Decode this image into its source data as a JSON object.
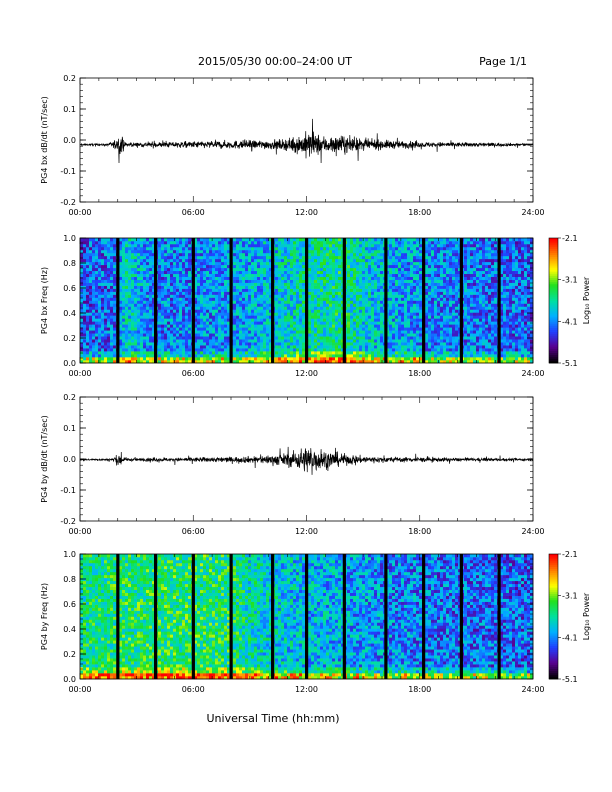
{
  "header": {
    "title": "2015/05/30  00:00–24:00 UT",
    "page": "Page 1/1"
  },
  "footer": {
    "xlabel": "Universal Time (hh:mm)"
  },
  "colors": {
    "trace": "#000000",
    "colormap": [
      "#000000",
      "#5a0090",
      "#2040ff",
      "#00b0ff",
      "#00e0a0",
      "#20e020",
      "#ffff00",
      "#ff8000",
      "#ff0000"
    ]
  },
  "chart_data": [
    {
      "type": "line",
      "ylabel": "PG4 bx dB/dt (nT/sec)",
      "xlim": [
        0,
        24
      ],
      "ylim": [
        -0.2,
        0.2
      ],
      "xticks": [
        "00:00",
        "06:00",
        "12:00",
        "18:00",
        "24:00"
      ],
      "yticks": [
        "-0.2",
        "-0.1",
        "0.0",
        "0.1",
        "0.2"
      ],
      "series": [
        {
          "baseline": -0.015,
          "envelope_x": [
            0,
            1.5,
            2.2,
            2.4,
            3,
            5,
            6,
            8,
            10,
            11,
            11.7,
            12.2,
            12.5,
            13,
            13.5,
            14,
            15,
            16,
            17,
            18,
            20,
            22,
            23,
            24
          ],
          "envelope_amp": [
            0.005,
            0.006,
            0.05,
            0.01,
            0.012,
            0.015,
            0.018,
            0.022,
            0.025,
            0.03,
            0.055,
            0.075,
            0.06,
            0.045,
            0.05,
            0.045,
            0.03,
            0.025,
            0.02,
            0.015,
            0.012,
            0.01,
            0.008,
            0.006
          ]
        }
      ]
    },
    {
      "type": "heatmap",
      "ylabel": "PG4 bx Freq (Hz)",
      "xlim": [
        0,
        24
      ],
      "ylim": [
        0,
        1.0
      ],
      "xticks": [
        "00:00",
        "06:00",
        "12:00",
        "18:00",
        "24:00"
      ],
      "yticks": [
        "0.0",
        "0.2",
        "0.4",
        "0.6",
        "0.8",
        "1.0"
      ],
      "colorbar": {
        "label": "Log₁₀ Power",
        "min": -5.1,
        "max": -2.1,
        "ticks": [
          "-2.1",
          "-3.1",
          "-4.1",
          "-5.1"
        ]
      },
      "gap_hours": [
        2.0,
        4.0,
        6.0,
        8.0,
        10.2,
        12.0,
        14.0,
        16.2,
        18.2,
        20.2,
        22.2
      ],
      "intensity_x": [
        0,
        2,
        2.4,
        4,
        6,
        8,
        10,
        11,
        12,
        13,
        14,
        15,
        16,
        18,
        20,
        22,
        24
      ],
      "intensity": [
        0.28,
        0.3,
        0.45,
        0.32,
        0.33,
        0.36,
        0.4,
        0.45,
        0.48,
        0.5,
        0.52,
        0.45,
        0.4,
        0.35,
        0.32,
        0.3,
        0.28
      ]
    },
    {
      "type": "line",
      "ylabel": "PG4 by dB/dt (nT/sec)",
      "xlim": [
        0,
        24
      ],
      "ylim": [
        -0.2,
        0.2
      ],
      "xticks": [
        "00:00",
        "06:00",
        "12:00",
        "18:00",
        "24:00"
      ],
      "yticks": [
        "-0.2",
        "-0.1",
        "0.0",
        "0.1",
        "0.2"
      ],
      "series": [
        {
          "baseline": -0.002,
          "envelope_x": [
            0,
            1.5,
            2.2,
            2.4,
            3,
            5,
            6,
            8,
            9,
            10,
            11,
            11.7,
            12.2,
            12.5,
            13,
            13.5,
            14,
            15,
            16,
            18,
            20,
            22,
            24
          ],
          "envelope_amp": [
            0.004,
            0.005,
            0.035,
            0.008,
            0.008,
            0.01,
            0.012,
            0.015,
            0.018,
            0.025,
            0.035,
            0.06,
            0.08,
            0.065,
            0.05,
            0.04,
            0.03,
            0.02,
            0.015,
            0.012,
            0.01,
            0.008,
            0.006
          ]
        }
      ]
    },
    {
      "type": "heatmap",
      "ylabel": "PG4 by Freq (Hz)",
      "xlim": [
        0,
        24
      ],
      "ylim": [
        0,
        1.0
      ],
      "xticks": [
        "00:00",
        "06:00",
        "12:00",
        "18:00",
        "24:00"
      ],
      "yticks": [
        "0.0",
        "0.2",
        "0.4",
        "0.6",
        "0.8",
        "1.0"
      ],
      "colorbar": {
        "label": "Log₁₀ Power",
        "min": -5.1,
        "max": -2.1,
        "ticks": [
          "-2.1",
          "-3.1",
          "-4.1",
          "-5.1"
        ]
      },
      "gap_hours": [
        2.0,
        4.0,
        6.0,
        8.0,
        10.2,
        12.0,
        14.0,
        16.2,
        18.2,
        20.2,
        22.2
      ],
      "intensity_x": [
        0,
        2,
        4,
        6,
        8,
        9,
        10,
        12,
        14,
        16,
        18,
        20,
        22,
        24
      ],
      "intensity": [
        0.52,
        0.55,
        0.56,
        0.56,
        0.55,
        0.48,
        0.45,
        0.4,
        0.38,
        0.34,
        0.32,
        0.3,
        0.29,
        0.28
      ]
    }
  ]
}
